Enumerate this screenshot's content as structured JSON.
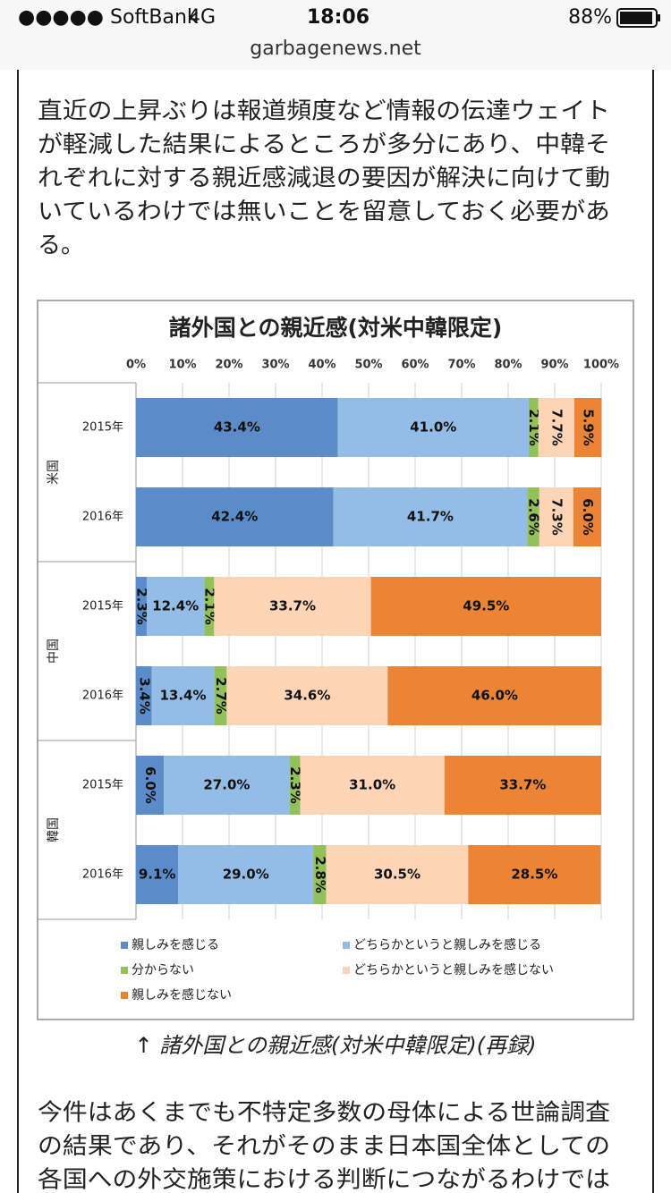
{
  "status_bar": {
    "carrier": "●●●●● SoftBank",
    "network": "4G",
    "time": "18:06",
    "battery": "88%",
    "url": "garbagenews.net"
  },
  "paragraph_1": [
    "直近の上昇ぶりは報道頻度など情報の伝達ウェイト",
    "が軽減した結果によるところが多分にあり、中韓そ",
    "れぞれに対する親近感減退の要因が解決に向けて動",
    "いているわけでは無いことを留意しておく必要があ",
    "る。"
  ],
  "chart_data": {
    "type": "stacked-bar-horizontal",
    "title": "諸外国との親近感(対米中韓限定)",
    "groups": [
      "米国",
      "中国",
      "韓国"
    ],
    "categories": [
      "2015年",
      "2016年",
      "2015年",
      "2016年",
      "2015年",
      "2016年"
    ],
    "series": [
      {
        "name": "親しみを感じる",
        "color": "#5b8bc9",
        "values": [
          43.4,
          42.4,
          2.3,
          3.4,
          6.0,
          9.1
        ],
        "value_labels": [
          "43.4%",
          "42.4%",
          "2.3%",
          "3.4%",
          "6.0%",
          "9.1%"
        ]
      },
      {
        "name": "どちらかというと親しみを感じる",
        "color": "#93bce6",
        "values": [
          41.0,
          41.7,
          12.4,
          13.4,
          27.0,
          29.0
        ],
        "value_labels": [
          "41.0%",
          "41.7%",
          "12.4%",
          "13.4%",
          "27.0%",
          "29.0%"
        ]
      },
      {
        "name": "分からない",
        "color": "#92c05a",
        "values": [
          2.1,
          2.6,
          2.1,
          2.7,
          2.3,
          2.8
        ],
        "value_labels": [
          "2.1%",
          "2.6%",
          "2.1%",
          "2.7%",
          "2.3%",
          "2.8%"
        ]
      },
      {
        "name": "どちらかというと親しみを感じない",
        "color": "#fdd5b6",
        "values": [
          7.7,
          7.3,
          33.7,
          34.6,
          31.0,
          30.5
        ],
        "value_labels": [
          "7.7%",
          "7.3%",
          "33.7%",
          "34.6%",
          "31.0%",
          "30.5%"
        ]
      },
      {
        "name": "親しみを感じない",
        "color": "#eb8535",
        "values": [
          5.9,
          6.0,
          49.5,
          46.0,
          33.7,
          28.5
        ],
        "value_labels": [
          "5.9%",
          "6.0%",
          "49.5%",
          "46.0%",
          "33.7%",
          "28.5%"
        ]
      }
    ],
    "xlim": [
      0,
      100
    ],
    "xticks": [
      {
        "value": 0,
        "label": "0%"
      },
      {
        "value": 10,
        "label": "10%"
      },
      {
        "value": 20,
        "label": "20%"
      },
      {
        "value": 30,
        "label": "30%"
      },
      {
        "value": 40,
        "label": "40%"
      },
      {
        "value": 50,
        "label": "50%"
      },
      {
        "value": 60,
        "label": "60%"
      },
      {
        "value": 70,
        "label": "70%"
      },
      {
        "value": 80,
        "label": "80%"
      },
      {
        "value": 90,
        "label": "90%"
      },
      {
        "value": 100,
        "label": "100%"
      }
    ],
    "grid": true
  },
  "caption": "↑ 諸外国との親近感(対米中韓限定)(再録)",
  "paragraph_2": [
    "今件はあくまでも不特定多数の母体による世論調査",
    "の結果であり、それがそのまま日本国全体としての",
    "各国への外交施策における判断につながるわけでは"
  ]
}
